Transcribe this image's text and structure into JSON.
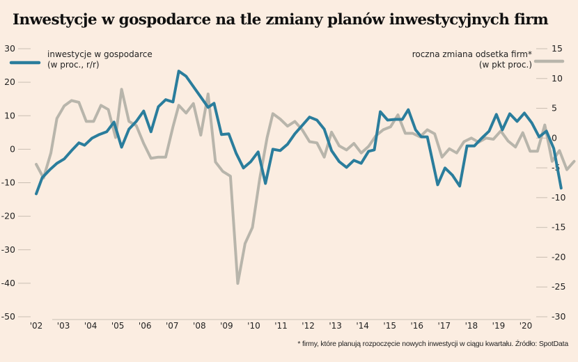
{
  "title": "Inwestycje w gospodarce na tle zmiany planów inwestycyjnych firm",
  "footnote": "* firmy, które planują rozpoczęcie nowych inwestycji w ciągu kwartału. Źródło: SpotData",
  "colors": {
    "background": "#fbede1",
    "investment": "#2a7d9c",
    "firms": "#b8b5ab",
    "grid": "#c9beb2"
  },
  "chart_data": {
    "type": "line",
    "title": "Inwestycje w gospodarce na tle zmiany planów inwestycyjnych firm",
    "xlabel": "",
    "x_ticks": [
      "'02",
      "'03",
      "'04",
      "'05",
      "'06",
      "'07",
      "'08",
      "'09",
      "'10",
      "'11",
      "'12",
      "'13",
      "'14",
      "'15",
      "'16",
      "'17",
      "'18",
      "'19",
      "'20"
    ],
    "x_range": [
      2002.0,
      2020.75
    ],
    "left_axis": {
      "label": "inwestycje w gospodarce (w proc., r/r)",
      "ticks": [
        30,
        20,
        10,
        0,
        -10,
        -20,
        -30,
        -40,
        -50
      ],
      "range": [
        -50,
        30
      ]
    },
    "right_axis": {
      "label": "roczna zmiana odsetka firm* (w pkt proc.)",
      "ticks": [
        15,
        10,
        5,
        0,
        -5,
        -10,
        -15,
        -20,
        -25,
        -30
      ],
      "range": [
        -30,
        15
      ]
    },
    "legend": [
      {
        "name": "inwestycje w gospodarce",
        "sub": "(w proc., r/r)",
        "position": "top-left",
        "axis": "left"
      },
      {
        "name": "roczna zmiana odsetka firm*",
        "sub": "(w pkt proc.)",
        "position": "top-right",
        "axis": "right"
      }
    ],
    "series": [
      {
        "name": "inwestycje w gospodarce (w proc., r/r)",
        "axis": "left",
        "x": [
          2002.0,
          2002.22,
          2002.49,
          2002.76,
          2003.03,
          2003.3,
          2003.57,
          2003.78,
          2004.05,
          2004.32,
          2004.59,
          2004.86,
          2005.14,
          2005.41,
          2005.68,
          2005.95,
          2006.22,
          2006.49,
          2006.76,
          2007.03,
          2007.24,
          2007.51,
          2007.78,
          2008.05,
          2008.32,
          2008.54,
          2008.81,
          2009.08,
          2009.35,
          2009.62,
          2009.89,
          2010.16,
          2010.43,
          2010.7,
          2010.97,
          2011.24,
          2011.51,
          2011.78,
          2012.05,
          2012.32,
          2012.59,
          2012.86,
          2013.14,
          2013.41,
          2013.68,
          2013.95,
          2014.22,
          2014.43,
          2014.65,
          2014.92,
          2015.19,
          2015.46,
          2015.68,
          2015.95,
          2016.16,
          2016.38,
          2016.76,
          2017.03,
          2017.3,
          2017.57,
          2017.84,
          2018.11,
          2018.38,
          2018.65,
          2018.92,
          2019.14,
          2019.41,
          2019.68,
          2019.95,
          2020.22,
          2020.49,
          2020.76,
          2021.03,
          2021.3
        ],
        "values": [
          -13.3,
          -8.5,
          -6.2,
          -4.2,
          -2.9,
          -0.4,
          1.9,
          1.2,
          3.3,
          4.4,
          5.2,
          8.1,
          0.6,
          6.0,
          8.3,
          11.4,
          5.2,
          12.7,
          14.8,
          14.1,
          23.3,
          21.8,
          18.7,
          15.6,
          12.5,
          13.7,
          4.4,
          4.6,
          -1.2,
          -5.6,
          -3.7,
          -0.8,
          -10.2,
          0.0,
          -0.4,
          1.5,
          4.6,
          7.1,
          9.6,
          8.7,
          6.0,
          -0.4,
          -3.7,
          -5.4,
          -3.3,
          -4.2,
          -0.6,
          -0.2,
          11.2,
          8.7,
          8.9,
          8.9,
          11.8,
          5.8,
          3.7,
          3.7,
          -10.6,
          -5.6,
          -7.7,
          -11.0,
          1.0,
          1.0,
          3.3,
          5.4,
          10.4,
          5.8,
          10.6,
          8.3,
          10.8,
          7.9,
          3.7,
          5.4,
          0.2,
          -11.6
        ]
      },
      {
        "name": "roczna zmiana odsetka firm* (w pkt proc.)",
        "axis": "right",
        "x": [
          2002.0,
          2002.27,
          2002.54,
          2002.76,
          2003.03,
          2003.3,
          2003.57,
          2003.84,
          2004.11,
          2004.38,
          2004.65,
          2004.92,
          2005.14,
          2005.41,
          2005.68,
          2005.95,
          2006.22,
          2006.49,
          2006.76,
          2007.03,
          2007.24,
          2007.51,
          2007.78,
          2008.05,
          2008.32,
          2008.59,
          2008.86,
          2009.14,
          2009.41,
          2009.68,
          2009.95,
          2010.22,
          2010.49,
          2010.7,
          2010.97,
          2011.24,
          2011.51,
          2011.78,
          2012.05,
          2012.32,
          2012.59,
          2012.86,
          2013.14,
          2013.41,
          2013.68,
          2013.95,
          2014.22,
          2014.49,
          2014.76,
          2015.03,
          2015.3,
          2015.57,
          2015.84,
          2016.11,
          2016.38,
          2016.65,
          2016.92,
          2017.19,
          2017.46,
          2017.73,
          2018.0,
          2018.27,
          2018.54,
          2018.81,
          2019.08,
          2019.35,
          2019.62,
          2019.89,
          2020.16,
          2020.43,
          2020.7,
          2020.97,
          2021.24,
          2021.51,
          2021.78
        ],
        "values": [
          -4.4,
          -6.7,
          -2.5,
          3.3,
          5.4,
          6.3,
          6.0,
          2.8,
          2.8,
          5.5,
          4.8,
          0.1,
          8.2,
          2.8,
          2.1,
          -0.9,
          -3.4,
          -3.2,
          -3.2,
          1.9,
          5.5,
          4.2,
          5.8,
          0.5,
          7.4,
          -4.0,
          -5.6,
          -6.4,
          -24.4,
          -17.7,
          -15.0,
          -6.8,
          0.1,
          4.1,
          3.2,
          2.0,
          2.8,
          1.4,
          -0.6,
          -0.8,
          -3.2,
          1.0,
          -1.3,
          -2.0,
          -0.9,
          -2.5,
          -1.4,
          0.4,
          1.4,
          1.9,
          3.9,
          0.8,
          0.8,
          0.2,
          1.4,
          0.7,
          -3.2,
          -1.8,
          -2.5,
          -0.6,
          0.0,
          -0.7,
          0.0,
          -0.2,
          1.2,
          -0.5,
          -1.5,
          0.9,
          -2.2,
          -2.2,
          2.2,
          -3.9,
          -2.1,
          -5.3,
          -3.9
        ]
      }
    ]
  }
}
